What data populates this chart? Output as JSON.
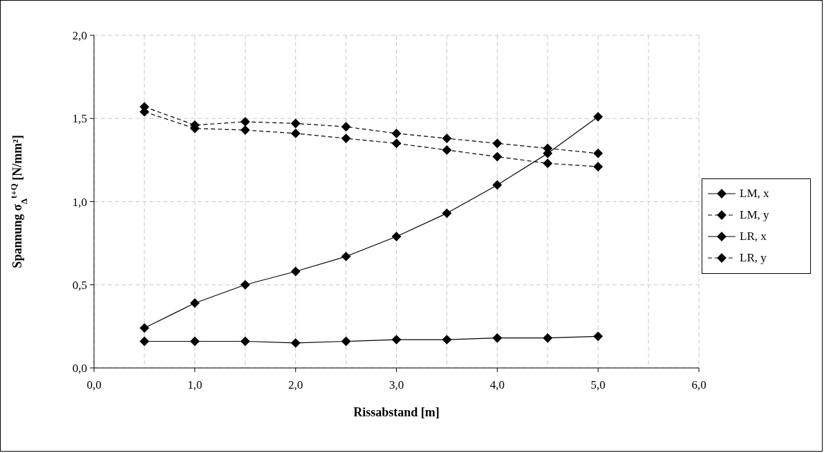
{
  "chart_data": {
    "type": "line",
    "xlabel": "Rissabstand [m]",
    "ylabel": "Spannung σ$_{Δ}$$^{t+Q}$ [N/mm²]",
    "x": [
      0.5,
      1.0,
      1.5,
      2.0,
      2.5,
      3.0,
      3.5,
      4.0,
      4.5,
      5.0
    ],
    "series": [
      {
        "name": "LM, x",
        "color": "#000000",
        "line_style": "solid",
        "values": [
          0.24,
          0.39,
          0.5,
          0.58,
          0.67,
          0.79,
          0.93,
          1.1,
          1.29,
          1.51
        ]
      },
      {
        "name": "LM, y",
        "color": "#000000",
        "line_style": "dashed",
        "values": [
          1.54,
          1.44,
          1.43,
          1.41,
          1.38,
          1.35,
          1.31,
          1.27,
          1.23,
          1.21
        ]
      },
      {
        "name": "LR, x",
        "color": "#000000",
        "line_style": "solid",
        "values": [
          0.16,
          0.16,
          0.16,
          0.15,
          0.16,
          0.17,
          0.17,
          0.18,
          0.18,
          0.19
        ]
      },
      {
        "name": "LR, y",
        "color": "#000000",
        "line_style": "dashed",
        "values": [
          1.57,
          1.46,
          1.48,
          1.47,
          1.45,
          1.41,
          1.38,
          1.35,
          1.32,
          1.29
        ]
      }
    ],
    "xlim": [
      0,
      6
    ],
    "xticks": [
      {
        "value": 0,
        "label": "0,0"
      },
      {
        "value": 0.5,
        "label": null
      },
      {
        "value": 1,
        "label": "1,0"
      },
      {
        "value": 1.5,
        "label": null
      },
      {
        "value": 2,
        "label": "2,0"
      },
      {
        "value": 2.5,
        "label": null
      },
      {
        "value": 3,
        "label": "3,0"
      },
      {
        "value": 3.5,
        "label": null
      },
      {
        "value": 4,
        "label": "4,0"
      },
      {
        "value": 4.5,
        "label": null
      },
      {
        "value": 5,
        "label": "5,0"
      },
      {
        "value": 5.5,
        "label": null
      },
      {
        "value": 6,
        "label": "6,0"
      }
    ],
    "ylim": [
      0,
      2
    ],
    "yticks": [
      {
        "value": 0,
        "label": "0,0"
      },
      {
        "value": 0.5,
        "label": "0,5"
      },
      {
        "value": 1,
        "label": "1,0"
      },
      {
        "value": 1.5,
        "label": "1,5"
      },
      {
        "value": 2,
        "label": "2,0"
      }
    ],
    "grid": true,
    "legend": "right",
    "marker": "diamond"
  }
}
